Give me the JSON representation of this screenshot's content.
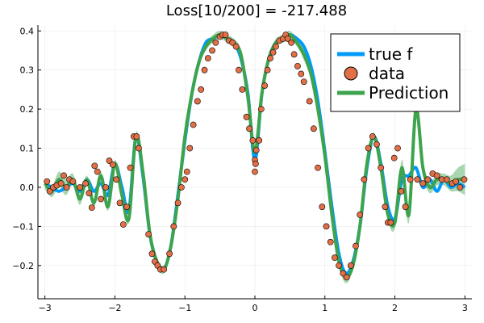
{
  "chart_data": {
    "type": "line",
    "title": "Loss[10/200] = -217.488",
    "xlabel": "",
    "ylabel": "",
    "xlim": [
      -3.1,
      3.1
    ],
    "ylim": [
      -0.285,
      0.415
    ],
    "xticks": [
      -3,
      -2,
      -1,
      0,
      1,
      2,
      3
    ],
    "xtick_labels": [
      "−3",
      "−2",
      "−1",
      "0",
      "1",
      "2",
      "3"
    ],
    "yticks": [
      -0.2,
      -0.1,
      0.0,
      0.1,
      0.2,
      0.3,
      0.4
    ],
    "ytick_labels": [
      "−0.2",
      "−0.1",
      "0.0",
      "0.1",
      "0.2",
      "0.3",
      "0.4"
    ],
    "grid": true,
    "legend_position": "top-right",
    "colors": {
      "true_f": "#009af9",
      "data": "#e26f46",
      "prediction": "#3da44d",
      "band": "#3da44d"
    },
    "legend": [
      {
        "key": "true_f",
        "label": "true f",
        "kind": "line"
      },
      {
        "key": "data",
        "label": "data",
        "kind": "marker"
      },
      {
        "key": "prediction",
        "label": "Prediction",
        "kind": "line"
      }
    ],
    "series": [
      {
        "name": "true f",
        "function": "sin(pi*x)/(pi*x)-style oscillation (sampled)",
        "x": [
          -3.0,
          -2.9,
          -2.8,
          -2.7,
          -2.6,
          -2.5,
          -2.4,
          -2.3,
          -2.2,
          -2.1,
          -2.0,
          -1.9,
          -1.8,
          -1.7,
          -1.6,
          -1.5,
          -1.4,
          -1.3,
          -1.2,
          -1.1,
          -1.0,
          -0.9,
          -0.8,
          -0.7,
          -0.6,
          -0.5,
          -0.4,
          -0.3,
          -0.2,
          -0.1,
          0.0,
          0.1,
          0.2,
          0.3,
          0.4,
          0.5,
          0.6,
          0.7,
          0.8,
          0.9,
          1.0,
          1.1,
          1.2,
          1.3,
          1.4,
          1.5,
          1.6,
          1.7,
          1.8,
          1.9,
          2.0,
          2.1,
          2.2,
          2.3,
          2.4,
          2.5,
          2.6,
          2.7,
          2.8,
          2.9,
          3.0
        ],
        "y": [
          0.01,
          0.0,
          -0.01,
          0.0,
          0.01,
          -0.01,
          0.02,
          -0.01,
          0.01,
          -0.02,
          0.06,
          0.0,
          -0.06,
          0.13,
          0.03,
          -0.12,
          -0.19,
          -0.21,
          -0.15,
          -0.02,
          0.12,
          0.24,
          0.32,
          0.37,
          0.38,
          0.39,
          0.38,
          0.37,
          0.33,
          0.24,
          0.07,
          0.24,
          0.33,
          0.37,
          0.38,
          0.39,
          0.38,
          0.36,
          0.31,
          0.22,
          0.09,
          -0.05,
          -0.17,
          -0.22,
          -0.19,
          -0.1,
          0.05,
          0.13,
          0.06,
          -0.05,
          -0.08,
          0.02,
          0.03,
          0.05,
          0.0,
          0.02,
          -0.01,
          0.02,
          0.0,
          0.01,
          0.0
        ]
      },
      {
        "name": "Prediction",
        "x": [
          -3.0,
          -2.9,
          -2.8,
          -2.7,
          -2.6,
          -2.5,
          -2.4,
          -2.3,
          -2.2,
          -2.1,
          -2.0,
          -1.9,
          -1.8,
          -1.7,
          -1.6,
          -1.5,
          -1.4,
          -1.3,
          -1.2,
          -1.1,
          -1.0,
          -0.9,
          -0.8,
          -0.7,
          -0.6,
          -0.5,
          -0.4,
          -0.3,
          -0.2,
          -0.1,
          0.0,
          0.1,
          0.2,
          0.3,
          0.4,
          0.5,
          0.6,
          0.7,
          0.8,
          0.9,
          1.0,
          1.1,
          1.2,
          1.3,
          1.4,
          1.5,
          1.6,
          1.7,
          1.8,
          1.9,
          2.0,
          2.1,
          2.2,
          2.3,
          2.4,
          2.5,
          2.6,
          2.7,
          2.8,
          2.9,
          3.0
        ],
        "y": [
          0.01,
          -0.01,
          0.02,
          0.0,
          0.02,
          -0.03,
          0.02,
          -0.04,
          0.03,
          -0.05,
          0.06,
          -0.02,
          -0.08,
          0.13,
          0.04,
          -0.12,
          -0.19,
          -0.21,
          -0.15,
          -0.03,
          0.13,
          0.24,
          0.32,
          0.36,
          0.38,
          0.39,
          0.38,
          0.37,
          0.34,
          0.23,
          0.09,
          0.24,
          0.33,
          0.37,
          0.38,
          0.39,
          0.37,
          0.34,
          0.29,
          0.2,
          0.08,
          -0.07,
          -0.19,
          -0.23,
          -0.2,
          -0.1,
          0.06,
          0.13,
          0.05,
          -0.07,
          -0.09,
          0.05,
          -0.07,
          0.2,
          0.05,
          0.0,
          0.02,
          0.02,
          0.01,
          0.02,
          0.02
        ],
        "band_halfwidth": [
          0.015,
          0.015,
          0.02,
          0.02,
          0.015,
          0.015,
          0.01,
          0.01,
          0.01,
          0.01,
          0.01,
          0.01,
          0.01,
          0.01,
          0.01,
          0.01,
          0.01,
          0.01,
          0.01,
          0.01,
          0.01,
          0.01,
          0.01,
          0.01,
          0.01,
          0.01,
          0.01,
          0.01,
          0.01,
          0.01,
          0.015,
          0.01,
          0.01,
          0.01,
          0.01,
          0.01,
          0.01,
          0.015,
          0.015,
          0.01,
          0.01,
          0.01,
          0.01,
          0.015,
          0.01,
          0.01,
          0.01,
          0.01,
          0.01,
          0.015,
          0.015,
          0.02,
          0.02,
          0.025,
          0.02,
          0.015,
          0.015,
          0.015,
          0.02,
          0.03,
          0.04
        ]
      }
    ],
    "scatter": {
      "name": "data",
      "points": [
        [
          -2.97,
          0.015
        ],
        [
          -2.93,
          -0.01
        ],
        [
          -2.88,
          0.0
        ],
        [
          -2.83,
          0.005
        ],
        [
          -2.77,
          0.01
        ],
        [
          -2.73,
          0.03
        ],
        [
          -2.69,
          0.0
        ],
        [
          -2.65,
          0.02
        ],
        [
          -2.6,
          0.015
        ],
        [
          -2.5,
          0.0
        ],
        [
          -2.42,
          0.01
        ],
        [
          -2.37,
          -0.015
        ],
        [
          -2.33,
          -0.052
        ],
        [
          -2.29,
          0.055
        ],
        [
          -2.25,
          0.04
        ],
        [
          -2.2,
          -0.03
        ],
        [
          -2.13,
          0.0
        ],
        [
          -2.08,
          0.068
        ],
        [
          -2.03,
          0.058
        ],
        [
          -1.98,
          0.02
        ],
        [
          -1.93,
          -0.04
        ],
        [
          -1.88,
          -0.095
        ],
        [
          -1.83,
          -0.05
        ],
        [
          -1.78,
          0.05
        ],
        [
          -1.73,
          0.13
        ],
        [
          -1.69,
          0.13
        ],
        [
          -1.66,
          0.1
        ],
        [
          -1.52,
          -0.12
        ],
        [
          -1.47,
          -0.17
        ],
        [
          -1.43,
          -0.19
        ],
        [
          -1.39,
          -0.2
        ],
        [
          -1.35,
          -0.21
        ],
        [
          -1.3,
          -0.21
        ],
        [
          -1.22,
          -0.17
        ],
        [
          -1.16,
          -0.1
        ],
        [
          -1.1,
          -0.04
        ],
        [
          -1.05,
          0.0
        ],
        [
          -1.0,
          0.02
        ],
        [
          -0.97,
          0.04
        ],
        [
          -0.93,
          0.1
        ],
        [
          -0.88,
          0.16
        ],
        [
          -0.82,
          0.22
        ],
        [
          -0.77,
          0.25
        ],
        [
          -0.72,
          0.3
        ],
        [
          -0.67,
          0.33
        ],
        [
          -0.61,
          0.35
        ],
        [
          -0.56,
          0.37
        ],
        [
          -0.5,
          0.385
        ],
        [
          -0.46,
          0.39
        ],
        [
          -0.42,
          0.39
        ],
        [
          -0.37,
          0.375
        ],
        [
          -0.32,
          0.37
        ],
        [
          -0.27,
          0.36
        ],
        [
          -0.23,
          0.3
        ],
        [
          -0.18,
          0.25
        ],
        [
          -0.12,
          0.18
        ],
        [
          -0.08,
          0.15
        ],
        [
          -0.03,
          0.12
        ],
        [
          0.0,
          0.07
        ],
        [
          0.01,
          0.06
        ],
        [
          0.0,
          0.04
        ],
        [
          0.02,
          0.095
        ],
        [
          0.06,
          0.12
        ],
        [
          0.09,
          0.2
        ],
        [
          0.14,
          0.26
        ],
        [
          0.18,
          0.3
        ],
        [
          0.22,
          0.33
        ],
        [
          0.26,
          0.345
        ],
        [
          0.3,
          0.36
        ],
        [
          0.35,
          0.375
        ],
        [
          0.4,
          0.38
        ],
        [
          0.44,
          0.39
        ],
        [
          0.47,
          0.38
        ],
        [
          0.52,
          0.37
        ],
        [
          0.56,
          0.34
        ],
        [
          0.61,
          0.31
        ],
        [
          0.66,
          0.29
        ],
        [
          0.7,
          0.27
        ],
        [
          0.78,
          0.22
        ],
        [
          0.84,
          0.15
        ],
        [
          0.9,
          0.05
        ],
        [
          0.96,
          -0.05
        ],
        [
          1.02,
          -0.1
        ],
        [
          1.08,
          -0.14
        ],
        [
          1.14,
          -0.18
        ],
        [
          1.2,
          -0.2
        ],
        [
          1.26,
          -0.22
        ],
        [
          1.31,
          -0.23
        ],
        [
          1.37,
          -0.2
        ],
        [
          1.44,
          -0.15
        ],
        [
          1.5,
          -0.07
        ],
        [
          1.56,
          0.02
        ],
        [
          1.62,
          0.1
        ],
        [
          1.68,
          0.13
        ],
        [
          1.74,
          0.11
        ],
        [
          1.8,
          0.05
        ],
        [
          1.86,
          -0.05
        ],
        [
          1.9,
          -0.09
        ],
        [
          1.94,
          -0.09
        ],
        [
          1.99,
          0.075
        ],
        [
          2.04,
          0.1
        ],
        [
          2.09,
          -0.01
        ],
        [
          2.15,
          -0.05
        ],
        [
          2.22,
          0.02
        ],
        [
          2.32,
          0.02
        ],
        [
          2.4,
          0.01
        ],
        [
          2.47,
          0.02
        ],
        [
          2.54,
          0.035
        ],
        [
          2.6,
          0.03
        ],
        [
          2.67,
          0.02
        ],
        [
          2.74,
          0.02
        ],
        [
          2.82,
          0.01
        ],
        [
          2.87,
          0.015
        ],
        [
          2.93,
          0.0
        ],
        [
          2.99,
          0.02
        ]
      ]
    }
  }
}
